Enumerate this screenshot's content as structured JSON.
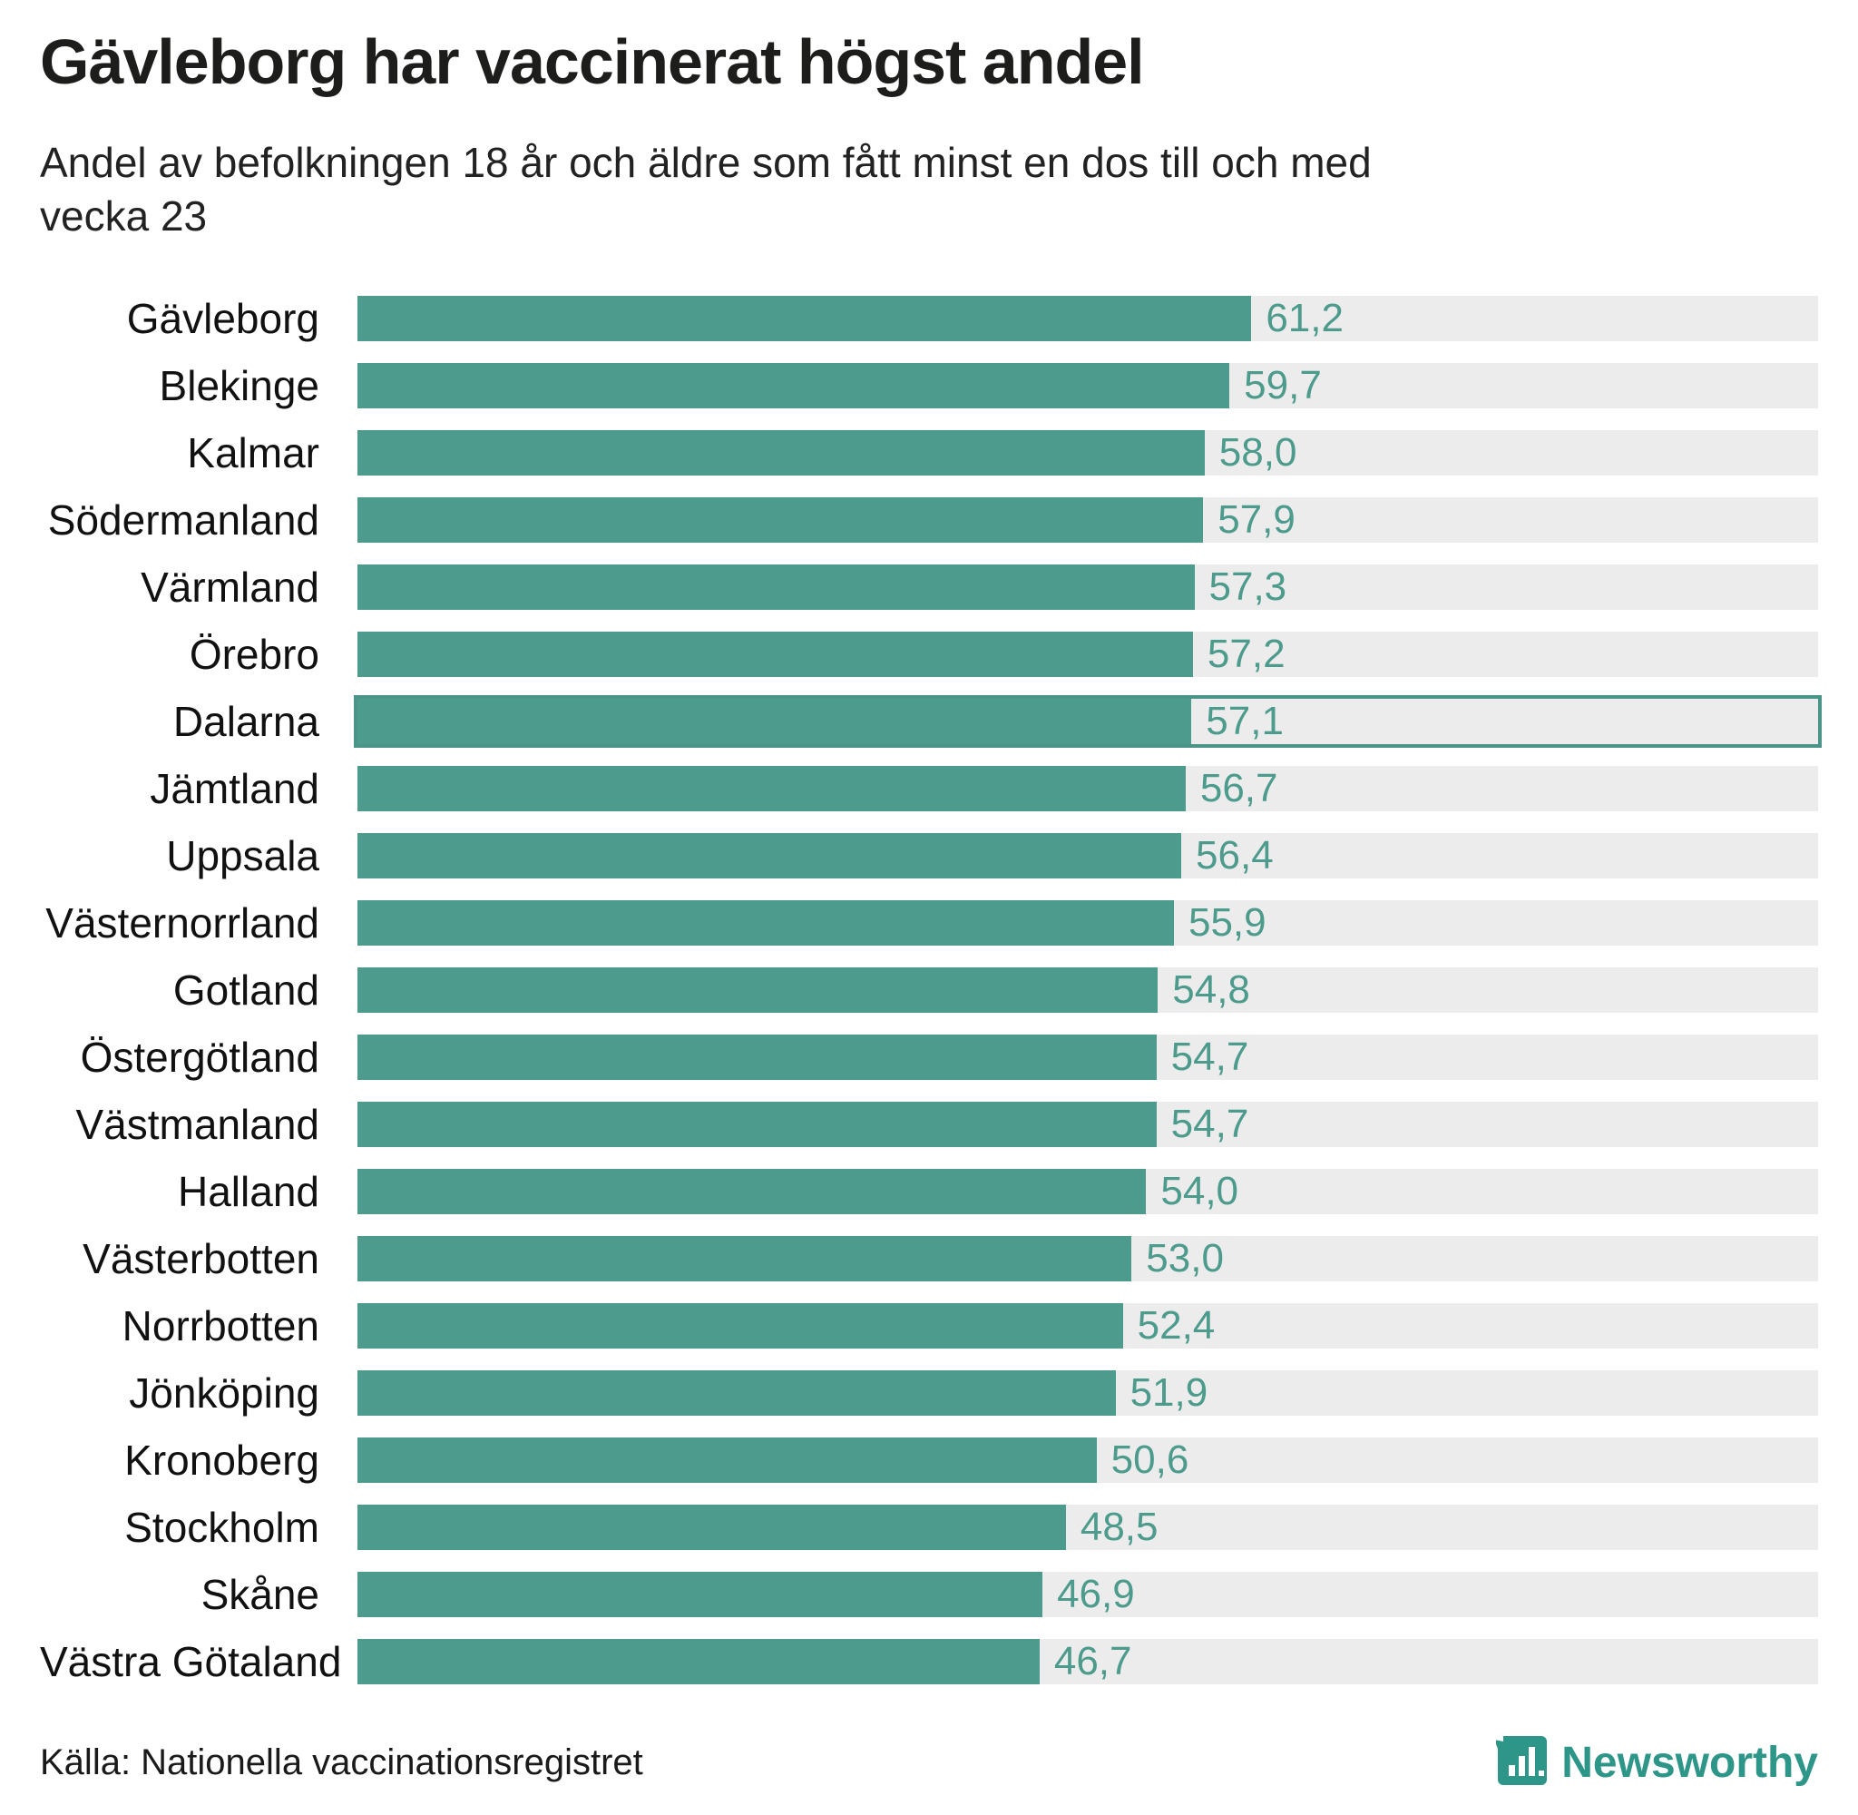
{
  "title": "Gävleborg har vaccinerat högst andel",
  "subtitle": "Andel av befolkningen 18 år och äldre som fått minst en dos till och med vecka 23",
  "source": "Källa: Nationella vaccinationsregistret",
  "brand": "Newsworthy",
  "colors": {
    "bar": "#4d9b8c",
    "track": "#ececec",
    "value_text": "#4d9b8c",
    "highlight_border": "#4a9488",
    "title_text": "#1d1d1b",
    "brand_teal": "#2e9688"
  },
  "chart_data": {
    "type": "bar",
    "orientation": "horizontal",
    "title": "Gävleborg har vaccinerat högst andel",
    "subtitle": "Andel av befolkningen 18 år och äldre som fått minst en dos till och med vecka 23",
    "xlabel": "",
    "ylabel": "",
    "xlim": [
      0,
      100
    ],
    "grid": false,
    "legend": false,
    "highlight_category": "Dalarna",
    "categories": [
      "Gävleborg",
      "Blekinge",
      "Kalmar",
      "Södermanland",
      "Värmland",
      "Örebro",
      "Dalarna",
      "Jämtland",
      "Uppsala",
      "Västernorrland",
      "Gotland",
      "Östergötland",
      "Västmanland",
      "Halland",
      "Västerbotten",
      "Norrbotten",
      "Jönköping",
      "Kronoberg",
      "Stockholm",
      "Skåne",
      "Västra Götaland"
    ],
    "values": [
      61.2,
      59.7,
      58.0,
      57.9,
      57.3,
      57.2,
      57.1,
      56.7,
      56.4,
      55.9,
      54.8,
      54.7,
      54.7,
      54.0,
      53.0,
      52.4,
      51.9,
      50.6,
      48.5,
      46.9,
      46.7
    ],
    "value_labels": [
      "61,2",
      "59,7",
      "58,0",
      "57,9",
      "57,3",
      "57,2",
      "57,1",
      "56,7",
      "56,4",
      "55,9",
      "54,8",
      "54,7",
      "54,7",
      "54,0",
      "53,0",
      "52,4",
      "51,9",
      "50,6",
      "48,5",
      "46,9",
      "46,7"
    ]
  }
}
